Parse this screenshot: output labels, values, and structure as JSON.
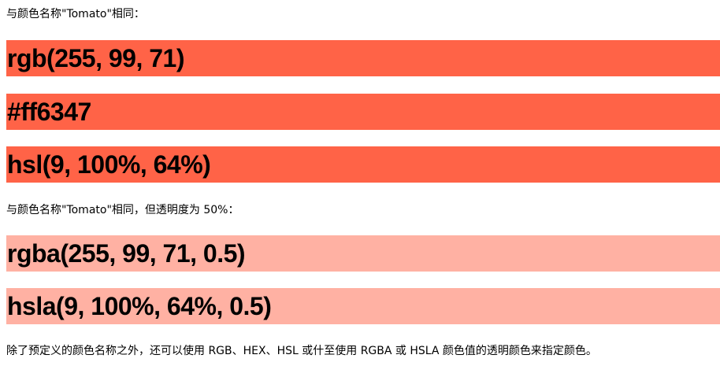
{
  "intro_text": "与颜色名称\"Tomato\"相同：",
  "solid_swatches": [
    {
      "label": "rgb(255, 99, 71)",
      "color": "#ff6347"
    },
    {
      "label": "#ff6347",
      "color": "#ff6347"
    },
    {
      "label": "hsl(9, 100%, 64%)",
      "color": "#ff6347"
    }
  ],
  "transparent_text": "与颜色名称\"Tomato\"相同，但透明度为 50%：",
  "transparent_swatches": [
    {
      "label": "rgba(255, 99, 71, 0.5)",
      "color": "rgba(255, 99, 71, 0.5)"
    },
    {
      "label": "hsla(9, 100%, 64%, 0.5)",
      "color": "rgba(255, 99, 71, 0.5)"
    }
  ],
  "footer_text": "除了预定义的颜色名称之外，还可以使用 RGB、HEX、HSL 或什至使用 RGBA 或 HSLA 颜色值的透明颜色来指定颜色。"
}
